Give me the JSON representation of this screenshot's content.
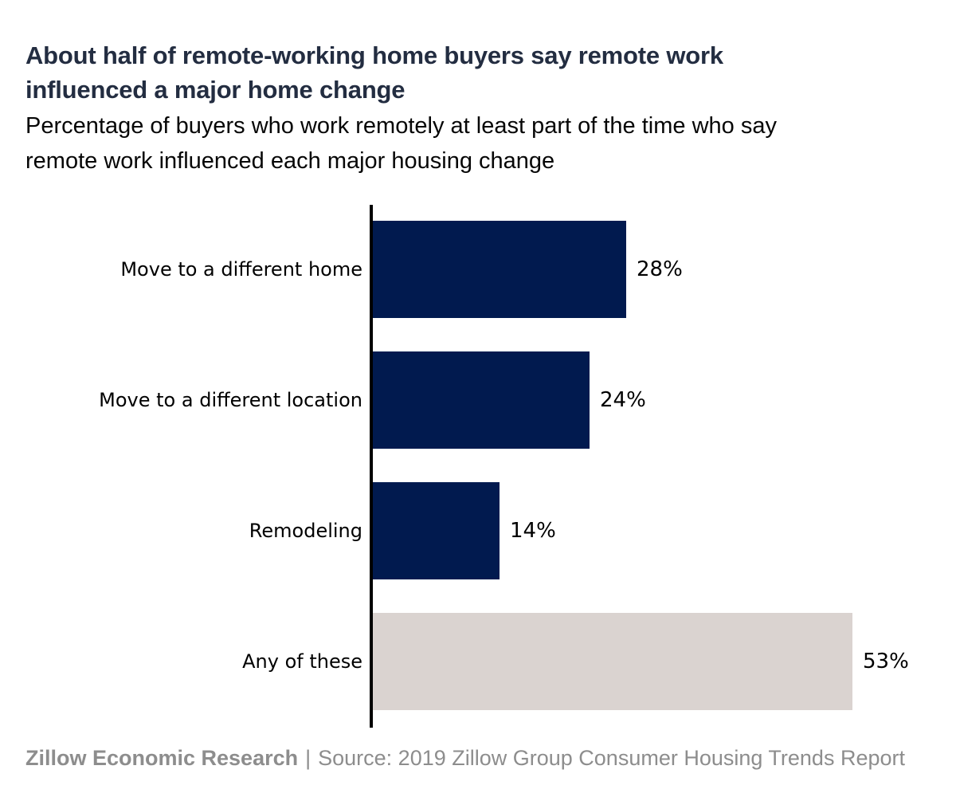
{
  "header": {
    "title_line1": "About half of remote-working home buyers say remote work",
    "title_line2": "influenced a major home change",
    "subtitle_line1": "Percentage of buyers who work remotely at least part of the time who say",
    "subtitle_line2": "remote work influenced each major housing change"
  },
  "chart_data": {
    "type": "bar",
    "orientation": "horizontal",
    "title": "About half of remote-working home buyers say remote work influenced a major home change",
    "subtitle": "Percentage of buyers who work remotely at least part of the time who say remote work influenced each major housing change",
    "categories": [
      "Move to a different home",
      "Move to a different location",
      "Remodeling",
      "Any of these"
    ],
    "values": [
      28,
      24,
      14,
      53
    ],
    "value_labels": [
      "28%",
      "24%",
      "14%",
      "53%"
    ],
    "bar_colors": [
      "#011a4f",
      "#011a4f",
      "#011a4f",
      "#dad3d0"
    ],
    "xlim": [
      0,
      60
    ],
    "grid": false,
    "legend": "none",
    "axis_line_color": "#000000",
    "background_color": "#ffffff"
  },
  "colors": {
    "navy_bar": "#011a4f",
    "gray_bar": "#dad3d0",
    "title_text": "#232d41",
    "subtitle_text": "#060606",
    "footer_text": "#8d8d8d",
    "axis_line": "#000000"
  },
  "footer": {
    "brand": "Zillow Economic Research",
    "separator": "|",
    "source": "Source: 2019 Zillow Group Consumer Housing Trends Report"
  }
}
